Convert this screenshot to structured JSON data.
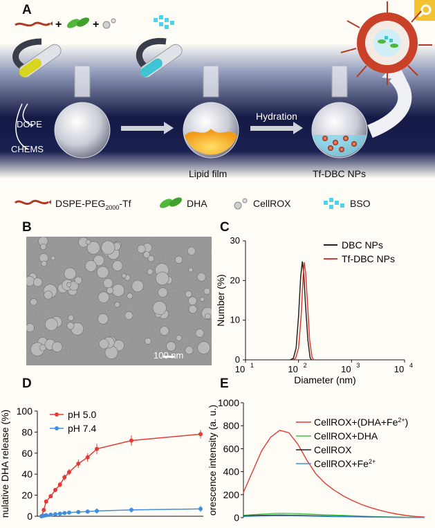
{
  "panels": {
    "a": "A",
    "b": "B",
    "c": "C",
    "d": "D",
    "e": "E"
  },
  "scheme": {
    "dope": "DOPE",
    "chems": "CHEMS",
    "hydration": "Hydration",
    "lipid_film": "Lipid film",
    "tf_dbc": "Tf-DBC NPs",
    "legend": {
      "dspe_main": "DSPE-PEG",
      "dspe_sub": "2000",
      "dspe_end": "-Tf",
      "dha": "DHA",
      "cellrox": "CellROX",
      "bso": "BSO"
    }
  },
  "tem": {
    "scale_bar": "100 nm"
  },
  "colors": {
    "red": "#e53935",
    "blue": "#3f8fe0",
    "black": "#222222",
    "green": "#3cc83c",
    "light_blue": "#3b8fe8"
  },
  "chart_data": [
    {
      "id": "C",
      "type": "line",
      "xlabel": "Diameter (nm)",
      "ylabel": "Number (%)",
      "xscale": "log",
      "xlim": [
        10,
        10000
      ],
      "ylim": [
        0,
        30
      ],
      "xticks": [
        "10",
        "10",
        "10",
        "10"
      ],
      "xtick_exps": [
        "1",
        "2",
        "3",
        "4"
      ],
      "yticks": [
        "0",
        "10",
        "20",
        "30"
      ],
      "legend_position": "top-right",
      "series": [
        {
          "name": "DBC NPs",
          "color": "#222222",
          "x": [
            70,
            80,
            90,
            100,
            110,
            118,
            125,
            135,
            150,
            165,
            175
          ],
          "y": [
            0,
            0.4,
            3,
            11,
            21,
            24.8,
            22,
            14,
            5,
            0.6,
            0
          ]
        },
        {
          "name": "Tf-DBC NPs",
          "color": "#e53935",
          "x": [
            78,
            88,
            100,
            112,
            122,
            128,
            136,
            148,
            162,
            180,
            195
          ],
          "y": [
            0,
            0.4,
            3,
            11,
            21,
            24.6,
            22,
            14,
            5,
            0.6,
            0
          ]
        }
      ]
    },
    {
      "id": "D",
      "type": "line",
      "xlabel": "",
      "ylabel": "nulative DHA release (%)",
      "ylim": [
        0,
        100
      ],
      "xlim": [
        0,
        48
      ],
      "yticks": [
        "0",
        "20",
        "40",
        "60",
        "80",
        "100"
      ],
      "legend_position": "top-left",
      "series": [
        {
          "name": "pH 5.0",
          "color": "#e53935",
          "x": [
            0,
            0.5,
            1,
            2,
            3,
            4,
            5,
            6,
            8,
            10,
            12,
            24,
            48
          ],
          "y": [
            0,
            6,
            14,
            19,
            25,
            30,
            37,
            42,
            50,
            56,
            64,
            72,
            78
          ],
          "err": [
            0,
            1,
            1.5,
            2,
            2,
            2.5,
            3,
            3,
            4,
            4,
            5,
            5,
            4
          ]
        },
        {
          "name": "pH 7.4",
          "color": "#3f8fe0",
          "x": [
            0,
            0.5,
            1,
            2,
            3,
            4,
            5,
            6,
            8,
            10,
            12,
            24,
            48
          ],
          "y": [
            0,
            0.5,
            1,
            1.5,
            2,
            2.5,
            3,
            3.5,
            4,
            4.5,
            5,
            6,
            7
          ],
          "err": [
            0,
            0.5,
            0.5,
            0.8,
            0.8,
            1,
            1,
            1.2,
            1.5,
            2,
            2.5,
            2.5,
            3
          ]
        }
      ]
    },
    {
      "id": "E",
      "type": "line",
      "xlabel": "",
      "ylabel": "orescence intensity (a. u.)",
      "ylim": [
        0,
        1000
      ],
      "yticks": [
        "0",
        "200",
        "400",
        "600",
        "800",
        "1000"
      ],
      "legend_position": "top-right",
      "series": [
        {
          "name_main": "CellROX+(DHA+Fe",
          "name_sup": "2+",
          "name_tail": ")",
          "color": "#e53935",
          "x": [
            0,
            0.05,
            0.1,
            0.15,
            0.2,
            0.25,
            0.3,
            0.35,
            0.4,
            0.45,
            0.5,
            0.55,
            0.6,
            0.65,
            0.7,
            0.75,
            0.8,
            0.85,
            0.9,
            0.95,
            1.0
          ],
          "y": [
            220,
            400,
            580,
            700,
            760,
            740,
            640,
            500,
            380,
            300,
            240,
            190,
            150,
            115,
            88,
            65,
            45,
            30,
            18,
            10,
            5
          ]
        },
        {
          "name_main": "CellROX+DHA",
          "name_sup": "",
          "name_tail": "",
          "color": "#3cc83c",
          "x": [
            0,
            0.1,
            0.2,
            0.3,
            0.4,
            0.5,
            0.6,
            0.7,
            0.8,
            0.9,
            1.0
          ],
          "y": [
            20,
            30,
            38,
            35,
            28,
            22,
            16,
            10,
            6,
            3,
            2
          ]
        },
        {
          "name_main": "CellROX",
          "name_sup": "",
          "name_tail": "",
          "color": "#222222",
          "x": [
            0,
            0.1,
            0.2,
            0.3,
            0.4,
            0.5,
            0.6,
            0.7,
            0.8,
            0.9,
            1.0
          ],
          "y": [
            15,
            20,
            22,
            20,
            16,
            12,
            9,
            6,
            4,
            2,
            1
          ]
        },
        {
          "name_main": "CellROX+Fe",
          "name_sup": "2+",
          "name_tail": "",
          "color": "#3b8fe8",
          "x": [
            0,
            0.1,
            0.2,
            0.3,
            0.4,
            0.5,
            0.6,
            0.7,
            0.8,
            0.9,
            1.0
          ],
          "y": [
            10,
            14,
            16,
            15,
            12,
            9,
            7,
            5,
            3,
            2,
            1
          ]
        }
      ]
    }
  ]
}
